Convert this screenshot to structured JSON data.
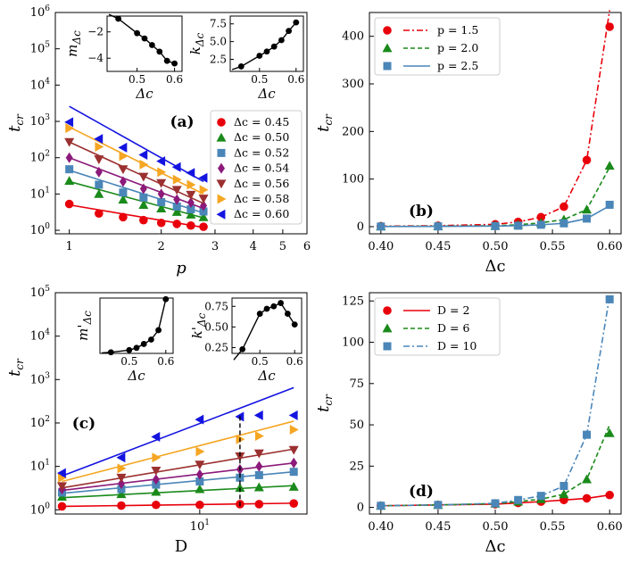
{
  "figure": {
    "description_label": "four-panel scientific figure"
  },
  "colors": {
    "red": "#e8000b",
    "green": "#1a8a1a",
    "steel": "#4a86b8",
    "purple": "#8b1a7a",
    "brown": "#9b3030",
    "orange": "#f5a623",
    "blue": "#1414e0"
  },
  "chart_data": [
    {
      "id": "a",
      "type": "scatter",
      "panel_label": "(a)",
      "xscale": "log",
      "yscale": "log",
      "xlim": [
        0.9,
        6
      ],
      "ylim": [
        0.8,
        1000000
      ],
      "xlabel": "p",
      "ylabel": "t_cr",
      "xticks": [
        "1",
        "2",
        "3",
        "4",
        "5",
        "6"
      ],
      "yticks": [
        "10^0",
        "10^1",
        "10^2",
        "10^3",
        "10^4",
        "10^5",
        "10^6"
      ],
      "legend_position": "right",
      "x": [
        1.0,
        1.25,
        1.5,
        1.75,
        2.0,
        2.25,
        2.5,
        2.75
      ],
      "series": [
        {
          "name": "Δc = 0.45",
          "marker": "circle",
          "color": "red",
          "values": [
            5.3,
            2.9,
            2.3,
            1.9,
            1.6,
            1.5,
            1.35,
            1.25
          ],
          "fit": [
            5.0,
            1.2
          ]
        },
        {
          "name": "Δc = 0.50",
          "marker": "triangle-up",
          "color": "green",
          "values": [
            23,
            10,
            7,
            5,
            4,
            3.2,
            2.7,
            2.3
          ],
          "fit": [
            22,
            2.2
          ]
        },
        {
          "name": "Δc = 0.52",
          "marker": "square",
          "color": "steel",
          "values": [
            48,
            18,
            11,
            8,
            6,
            4.5,
            3.8,
            3.3
          ],
          "fit": [
            45,
            3.0
          ]
        },
        {
          "name": "Δc = 0.54",
          "marker": "diamond",
          "color": "purple",
          "values": [
            100,
            40,
            22,
            14,
            10,
            7,
            5.8,
            4.8
          ],
          "fit": [
            100,
            4.0
          ]
        },
        {
          "name": "Δc = 0.56",
          "marker": "triangle-down",
          "color": "brown",
          "values": [
            270,
            90,
            48,
            30,
            20,
            13,
            9.5,
            7.5
          ],
          "fit": [
            270,
            5.5
          ]
        },
        {
          "name": "Δc = 0.58",
          "marker": "triangle-right",
          "color": "orange",
          "values": [
            650,
            200,
            110,
            65,
            40,
            25,
            18,
            13
          ],
          "fit": [
            700,
            10
          ]
        },
        {
          "name": "Δc = 0.60",
          "marker": "triangle-left",
          "color": "blue",
          "values": [
            950,
            330,
            190,
            120,
            80,
            55,
            38,
            28
          ],
          "fit": [
            2600,
            22
          ]
        }
      ],
      "insets": [
        {
          "ylabel": "m_Δc",
          "xlabel": "Δc",
          "xticks": [
            "0.5",
            "0.6"
          ],
          "yticks": [
            "−2",
            "−4"
          ],
          "xlim": [
            0.42,
            0.62
          ],
          "ylim": [
            -5.0,
            -0.8
          ],
          "x": [
            0.45,
            0.5,
            0.52,
            0.54,
            0.56,
            0.58,
            0.6
          ],
          "y": [
            -1.0,
            -2.1,
            -2.5,
            -3.0,
            -3.5,
            -4.2,
            -4.4
          ]
        },
        {
          "ylabel": "k_Δc",
          "xlabel": "Δc",
          "xticks": [
            "0.5",
            "0.6"
          ],
          "yticks": [
            "2.5",
            "5.0",
            "7.5"
          ],
          "xlim": [
            0.42,
            0.62
          ],
          "ylim": [
            0.8,
            8.6
          ],
          "x": [
            0.45,
            0.5,
            0.52,
            0.54,
            0.56,
            0.58,
            0.6
          ],
          "y": [
            1.5,
            3.0,
            3.6,
            4.3,
            5.2,
            6.5,
            7.7
          ]
        }
      ]
    },
    {
      "id": "b",
      "type": "line",
      "panel_label": "(b)",
      "xlim": [
        0.39,
        0.61
      ],
      "ylim": [
        -15,
        450
      ],
      "xlabel": "Δc",
      "ylabel": "t_cr",
      "xticks": [
        "0.40",
        "0.45",
        "0.50",
        "0.55",
        "0.60"
      ],
      "yticks": [
        "0",
        "100",
        "200",
        "300",
        "400"
      ],
      "legend_position": "top-left",
      "x": [
        0.4,
        0.45,
        0.5,
        0.52,
        0.54,
        0.56,
        0.58,
        0.6
      ],
      "series": [
        {
          "name": "p = 1.5",
          "marker": "circle",
          "color": "red",
          "line": "dashdot",
          "values": [
            1,
            2,
            5,
            10,
            20,
            42,
            140,
            420
          ],
          "fit_end": 455
        },
        {
          "name": "p = 2.0",
          "marker": "triangle-up",
          "color": "green",
          "line": "dashed",
          "values": [
            0.5,
            1,
            2,
            4,
            8,
            15,
            36,
            128
          ],
          "fit_end": 125
        },
        {
          "name": "p = 2.5",
          "marker": "square",
          "color": "steel",
          "line": "solid",
          "values": [
            0.3,
            0.6,
            1.2,
            2,
            4,
            7,
            17,
            46
          ],
          "fit_end": 44
        }
      ]
    },
    {
      "id": "c",
      "type": "scatter",
      "panel_label": "(c)",
      "xscale": "log",
      "yscale": "log",
      "xlim": [
        1.85,
        35
      ],
      "ylim": [
        0.8,
        100000
      ],
      "xlabel": "D",
      "ylabel": "t_cr",
      "xticks": [
        "10^1"
      ],
      "yticks": [
        "10^0",
        "10^1",
        "10^2",
        "10^3",
        "10^4",
        "10^5"
      ],
      "x": [
        2,
        4,
        6,
        10,
        16,
        20,
        30
      ],
      "series": [
        {
          "name": "Δc = 0.45",
          "marker": "circle",
          "color": "red",
          "values": [
            1.2,
            1.25,
            1.3,
            1.3,
            1.35,
            1.35,
            1.4
          ],
          "fit": [
            1.2,
            1.42
          ]
        },
        {
          "name": "Δc = 0.50",
          "marker": "triangle-up",
          "color": "green",
          "values": [
            2.0,
            2.3,
            2.6,
            3.0,
            3.2,
            3.3,
            3.4
          ],
          "fit": [
            1.9,
            3.6
          ]
        },
        {
          "name": "Δc = 0.52",
          "marker": "square",
          "color": "steel",
          "values": [
            2.5,
            3.0,
            3.8,
            4.5,
            5.5,
            6.3,
            7.5
          ],
          "fit": [
            2.4,
            7.5
          ]
        },
        {
          "name": "Δc = 0.54",
          "marker": "diamond",
          "color": "purple",
          "values": [
            3.0,
            4.0,
            5.0,
            6.5,
            8.5,
            10,
            12
          ],
          "fit": [
            2.8,
            12
          ]
        },
        {
          "name": "Δc = 0.56",
          "marker": "triangle-down",
          "color": "brown",
          "values": [
            3.5,
            5.5,
            8.0,
            11,
            17,
            20,
            24
          ],
          "fit": [
            3.2,
            25
          ]
        },
        {
          "name": "Δc = 0.58",
          "marker": "triangle-right",
          "color": "orange",
          "values": [
            5.5,
            9.0,
            16,
            22,
            42,
            50,
            70
          ],
          "fit": [
            4.5,
            110
          ]
        },
        {
          "name": "Δc = 0.60",
          "marker": "triangle-left",
          "color": "blue",
          "values": [
            7,
            16,
            48,
            120,
            140,
            150,
            150
          ],
          "fit": [
            6,
            650
          ]
        }
      ],
      "vline": {
        "x": 16,
        "y": [
          1.2,
          160
        ],
        "style": "dashed"
      },
      "insets": [
        {
          "ylabel": "m'_Δc",
          "xlabel": "Δc",
          "xticks": [
            "0.5",
            "0.6"
          ],
          "yticks": [],
          "xlim": [
            0.42,
            0.62
          ],
          "ylim": [
            0,
            1
          ],
          "x": [
            0.45,
            0.5,
            0.52,
            0.54,
            0.56,
            0.58,
            0.6
          ],
          "y": [
            0.02,
            0.06,
            0.1,
            0.17,
            0.25,
            0.42,
            0.98
          ]
        },
        {
          "ylabel": "k'_Δc",
          "xlabel": "Δc",
          "xticks": [
            "0.5",
            "0.6"
          ],
          "yticks": [
            "0.25",
            "0.50",
            "0.75"
          ],
          "xlim": [
            0.42,
            0.62
          ],
          "ylim": [
            0.18,
            0.85
          ],
          "x": [
            0.45,
            0.5,
            0.52,
            0.54,
            0.56,
            0.58,
            0.6
          ],
          "y": [
            0.23,
            0.66,
            0.72,
            0.75,
            0.79,
            0.66,
            0.53
          ]
        }
      ]
    },
    {
      "id": "d",
      "type": "line",
      "panel_label": "(d)",
      "xlim": [
        0.39,
        0.61
      ],
      "ylim": [
        -4,
        130
      ],
      "xlabel": "Δc",
      "ylabel": "t_cr",
      "xticks": [
        "0.40",
        "0.45",
        "0.50",
        "0.55",
        "0.60"
      ],
      "yticks": [
        "0",
        "25",
        "50",
        "75",
        "100",
        "125"
      ],
      "legend_position": "top-left",
      "x": [
        0.4,
        0.45,
        0.5,
        0.52,
        0.54,
        0.56,
        0.58,
        0.6
      ],
      "series": [
        {
          "name": "D = 2",
          "marker": "circle",
          "color": "red",
          "line": "solid",
          "values": [
            1,
            1.5,
            2,
            2.7,
            3.5,
            4.5,
            5.5,
            7.5
          ],
          "fit_end": 7.5
        },
        {
          "name": "D = 6",
          "marker": "triangle-up",
          "color": "green",
          "line": "dashed",
          "values": [
            1,
            1.5,
            2.3,
            3.5,
            5,
            8,
            17,
            45
          ],
          "fit_end": 50
        },
        {
          "name": "D = 10",
          "marker": "square",
          "color": "steel",
          "line": "dashdot",
          "values": [
            1,
            1.5,
            2.5,
            4.5,
            7,
            13,
            44,
            126
          ],
          "fit_end": 128
        }
      ]
    }
  ]
}
